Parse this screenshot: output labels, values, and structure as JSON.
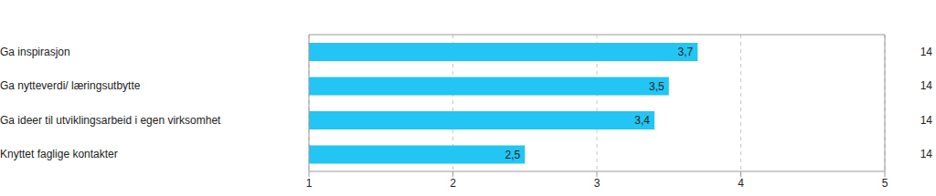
{
  "chart_data": {
    "type": "bar",
    "orientation": "horizontal",
    "categories": [
      "Ga inspirasjon",
      "Ga nytteverdi/ læringsutbytte",
      "Ga ideer til utviklingsarbeid i egen virksomhet",
      "Knyttet faglige kontakter"
    ],
    "values": [
      3.7,
      3.5,
      3.4,
      2.5
    ],
    "value_labels": [
      "3,7",
      "3,5",
      "3,4",
      "2,5"
    ],
    "n": [
      14,
      14,
      14,
      14
    ],
    "color": "#22c5f3",
    "xlim": [
      1,
      5
    ],
    "xticks": [
      1,
      2,
      3,
      4,
      5
    ],
    "grid": true,
    "data_labels": true
  }
}
